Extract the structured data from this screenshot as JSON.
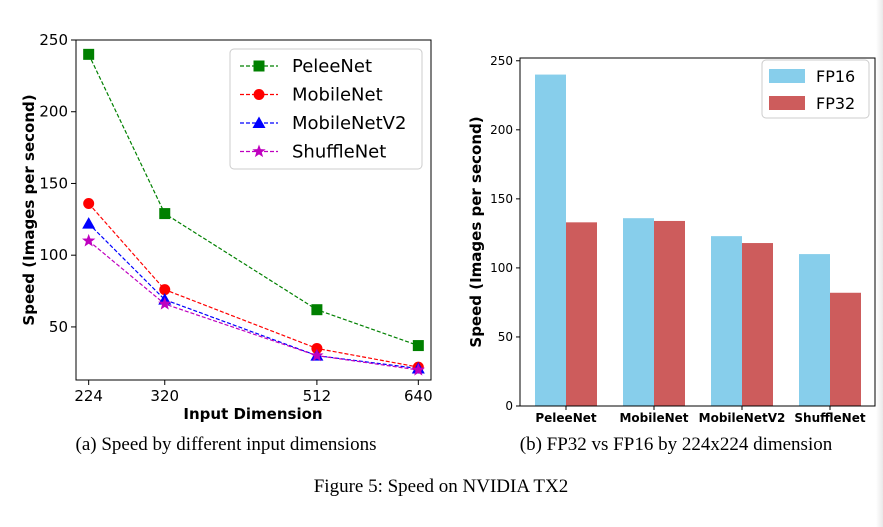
{
  "figure_caption": "Figure 5: Speed on NVIDIA TX2",
  "chart_data": [
    {
      "type": "line",
      "caption": "(a) Speed by different input dimensions",
      "xlabel": "Input Dimension",
      "ylabel": "Speed (Images per second)",
      "x": [
        224,
        320,
        512,
        640
      ],
      "x_tick_labels": [
        "224",
        "320",
        "512",
        "640"
      ],
      "y_ticks": [
        "50",
        "100",
        "150",
        "200",
        "250"
      ],
      "ylim": [
        13,
        250
      ],
      "grid": false,
      "legend_position": "top-right",
      "series": [
        {
          "name": "PeleeNet",
          "marker": "square",
          "color": "#008000",
          "values": [
            240,
            129,
            62,
            37
          ]
        },
        {
          "name": "MobileNet",
          "marker": "circle",
          "color": "#ff0000",
          "values": [
            136,
            76,
            35,
            22
          ]
        },
        {
          "name": "MobileNetV2",
          "marker": "triangle",
          "color": "#0000ff",
          "values": [
            122,
            69,
            30,
            21
          ]
        },
        {
          "name": "ShuffleNet",
          "marker": "star",
          "color": "#bf00bf",
          "values": [
            110,
            66,
            30,
            20
          ]
        }
      ]
    },
    {
      "type": "bar",
      "caption": "(b) FP32 vs FP16 by 224x224 dimension",
      "ylabel": "Speed (Images per second)",
      "categories": [
        "PeleeNet",
        "MobileNet",
        "MobileNetV2",
        "ShuffleNet"
      ],
      "y_ticks": [
        "0",
        "50",
        "100",
        "150",
        "200",
        "250"
      ],
      "ylim": [
        0,
        252
      ],
      "grid": false,
      "legend_position": "top-right",
      "series": [
        {
          "name": "FP16",
          "color": "#87ceeb",
          "values": [
            240,
            136,
            123,
            110
          ]
        },
        {
          "name": "FP32",
          "color": "#cd5c5c",
          "values": [
            133,
            134,
            118,
            82
          ]
        }
      ]
    }
  ]
}
